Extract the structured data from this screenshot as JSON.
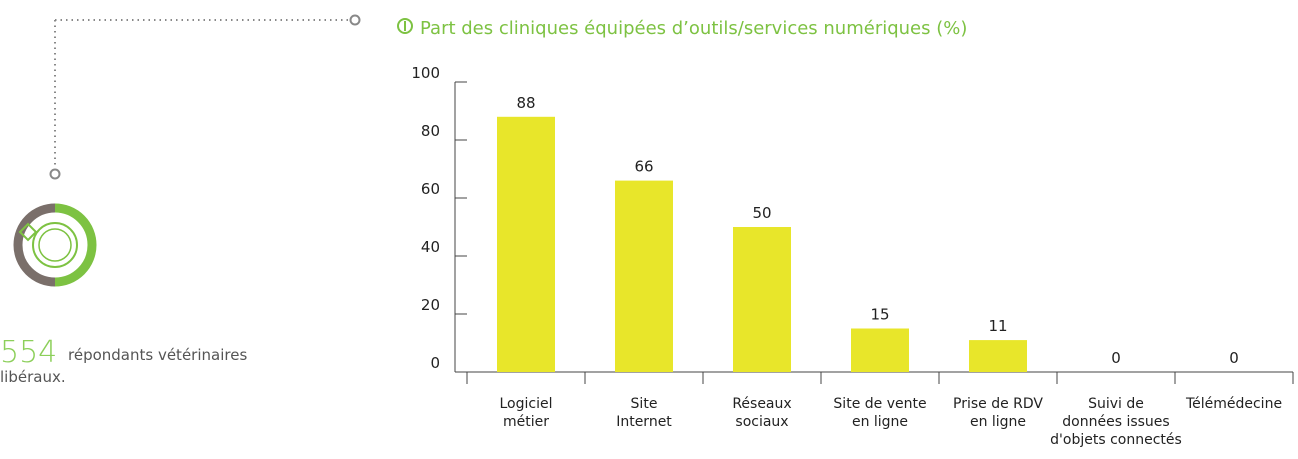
{
  "respondents": {
    "count": 554,
    "text_line1": "répondants vétérinaires",
    "text_line2": "libéraux."
  },
  "chart_data": {
    "type": "bar",
    "title": "Part des cliniques équipées d’outils/services numériques (%)",
    "categories": [
      [
        "Logiciel",
        "métier"
      ],
      [
        "Site",
        "Internet"
      ],
      [
        "Réseaux",
        "sociaux"
      ],
      [
        "Site de vente",
        "en ligne"
      ],
      [
        "Prise de RDV",
        "en ligne"
      ],
      [
        "Suivi de",
        "données issues",
        "d'objets connectés"
      ],
      [
        "Télémédecine"
      ]
    ],
    "values": [
      88,
      66,
      50,
      15,
      11,
      0,
      0
    ],
    "color": "#e8e62a",
    "ylim": [
      0,
      100
    ],
    "yticks": [
      0,
      20,
      40,
      60,
      80,
      100
    ],
    "grid": false
  }
}
